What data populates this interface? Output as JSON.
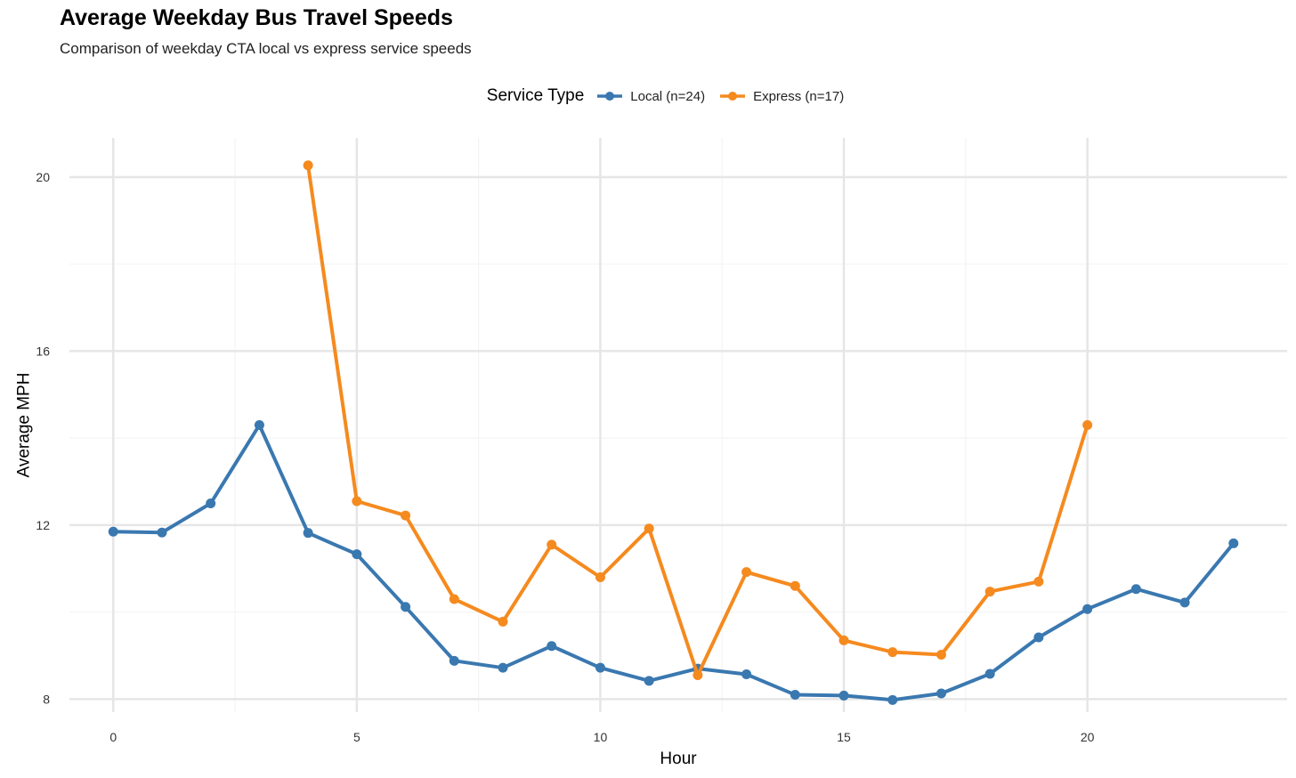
{
  "chart_data": {
    "type": "line",
    "title": "Average Weekday Bus Travel Speeds",
    "subtitle": "Comparison of weekday CTA local vs express service speeds",
    "xlabel": "Hour",
    "ylabel": "Average MPH",
    "xlim": [
      -0.9,
      24.1
    ],
    "ylim": [
      7.7,
      20.9
    ],
    "x_ticks": [
      0,
      5,
      10,
      15,
      20
    ],
    "y_ticks": [
      8,
      12,
      16,
      20
    ],
    "grid": true,
    "legend": {
      "title": "Service Type",
      "position": "top"
    },
    "series": [
      {
        "name": "Local (n=24)",
        "color": "#3A78B0",
        "x": [
          0,
          1,
          2,
          3,
          4,
          5,
          6,
          7,
          8,
          9,
          10,
          11,
          12,
          13,
          14,
          15,
          16,
          17,
          18,
          19,
          20,
          21,
          22,
          23
        ],
        "values": [
          11.85,
          11.83,
          12.5,
          14.3,
          11.82,
          11.33,
          10.12,
          8.88,
          8.72,
          9.22,
          8.72,
          8.42,
          8.7,
          8.57,
          8.1,
          8.08,
          7.98,
          8.13,
          8.58,
          9.42,
          10.07,
          10.53,
          10.22,
          11.58
        ]
      },
      {
        "name": "Express (n=17)",
        "color": "#F58A1F",
        "x": [
          4,
          5,
          6,
          7,
          8,
          9,
          10,
          11,
          12,
          13,
          14,
          15,
          16,
          17,
          18,
          19,
          20
        ],
        "values": [
          20.27,
          12.55,
          12.22,
          10.3,
          9.78,
          11.55,
          10.8,
          11.92,
          8.55,
          10.92,
          10.6,
          9.35,
          9.08,
          9.02,
          10.47,
          10.7,
          14.3
        ]
      }
    ]
  }
}
